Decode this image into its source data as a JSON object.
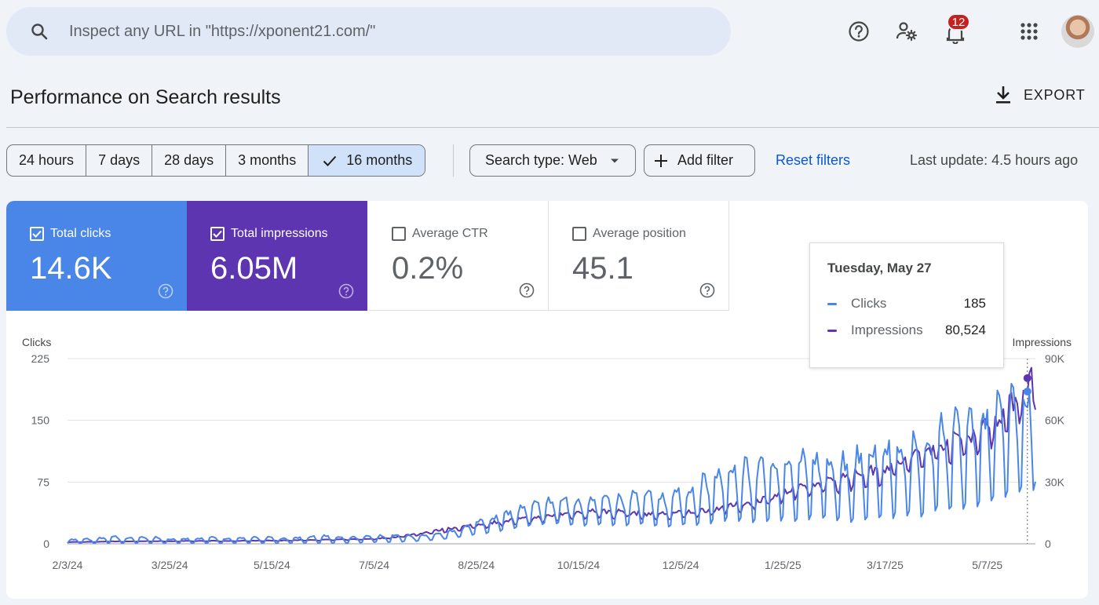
{
  "search": {
    "placeholder": "Inspect any URL in \"https://xponent21.com/\""
  },
  "topbar": {
    "icons": [
      "help-icon",
      "manage-users-icon",
      "notifications-icon",
      "apps-grid-icon"
    ],
    "notification_count": "12"
  },
  "header": {
    "title": "Performance on Search results",
    "export_label": "EXPORT"
  },
  "filters": {
    "ranges": [
      "24 hours",
      "7 days",
      "28 days",
      "3 months",
      "16 months"
    ],
    "active_range": "16 months",
    "search_type": "Search type: Web",
    "add_filter": "Add filter",
    "reset": "Reset filters",
    "last_update": "Last update: 4.5 hours ago"
  },
  "metrics": {
    "clicks": {
      "label": "Total clicks",
      "value": "14.6K",
      "checked": true,
      "color": "#4a86e8"
    },
    "impressions": {
      "label": "Total impressions",
      "value": "6.05M",
      "checked": true,
      "color": "#5e35b1"
    },
    "ctr": {
      "label": "Average CTR",
      "value": "0.2%",
      "checked": false
    },
    "position": {
      "label": "Average position",
      "value": "45.1",
      "checked": false
    }
  },
  "tooltip": {
    "date": "Tuesday, May 27",
    "rows": [
      {
        "name": "Clicks",
        "value": "185",
        "color": "#4a86e8"
      },
      {
        "name": "Impressions",
        "value": "80,524",
        "color": "#5e35b1"
      }
    ]
  },
  "chart_data": {
    "type": "line",
    "ylabel_left": "Clicks",
    "ylabel_right": "Impressions",
    "left_ticks": [
      "225",
      "150",
      "75",
      "0"
    ],
    "right_ticks": [
      "90K",
      "60K",
      "30K",
      "0"
    ],
    "ylim_left": [
      0,
      225
    ],
    "ylim_right": [
      0,
      90000
    ],
    "x_ticks": [
      "2/3/24",
      "3/25/24",
      "5/15/24",
      "7/5/24",
      "8/25/24",
      "10/15/24",
      "12/5/24",
      "1/25/25",
      "3/17/25",
      "5/7/25"
    ],
    "x_start": "2024-02-03",
    "x_end": "2025-05-31",
    "grid": true,
    "series": [
      {
        "name": "Clicks",
        "color": "#4a86e8",
        "axis": "left",
        "weekly_peak": [
          5,
          6,
          6,
          10,
          7,
          8,
          8,
          6,
          7,
          7,
          8,
          6,
          7,
          8,
          8,
          7,
          8,
          9,
          10,
          8,
          8,
          9,
          10,
          11,
          10,
          10,
          12,
          16,
          22,
          30,
          34,
          40,
          45,
          50,
          54,
          56,
          52,
          60,
          58,
          56,
          64,
          62,
          60,
          68,
          72,
          82,
          92,
          100,
          96,
          104,
          110,
          100,
          114,
          106,
          108,
          102,
          118,
          126,
          122,
          120,
          128,
          142,
          150,
          155,
          160,
          165,
          180,
          185,
          178
        ],
        "weekly_low": [
          0,
          0,
          0,
          0,
          0,
          0,
          0,
          0,
          0,
          0,
          0,
          0,
          0,
          0,
          0,
          0,
          0,
          0,
          0,
          0,
          0,
          1,
          1,
          1,
          2,
          3,
          4,
          6,
          8,
          10,
          12,
          15,
          18,
          20,
          22,
          20,
          18,
          20,
          18,
          17,
          20,
          18,
          16,
          18,
          16,
          18,
          20,
          20,
          18,
          18,
          20,
          18,
          20,
          22,
          20,
          18,
          20,
          20,
          22,
          24,
          24,
          28,
          30,
          30,
          35,
          40,
          45,
          50,
          55
        ]
      },
      {
        "name": "Impressions",
        "color": "#5e35b1",
        "axis": "right",
        "weekly": [
          800,
          900,
          900,
          1200,
          1100,
          1200,
          1300,
          1200,
          1300,
          1300,
          1400,
          1300,
          1400,
          1500,
          1500,
          1600,
          1700,
          1800,
          1900,
          2000,
          2100,
          2300,
          2600,
          3200,
          4200,
          5200,
          6300,
          7400,
          8200,
          9000,
          10200,
          11000,
          11600,
          12200,
          13000,
          14200,
          14800,
          15500,
          15000,
          15200,
          14400,
          14000,
          14200,
          14500,
          15200,
          16000,
          17200,
          18200,
          19500,
          21500,
          23500,
          25000,
          27000,
          28500,
          30500,
          32000,
          33500,
          35000,
          37000,
          40000,
          43000,
          46000,
          48500,
          50000,
          53000,
          58000,
          63000,
          72000,
          80524
        ]
      }
    ],
    "highlight": {
      "date": "2025-05-27",
      "clicks": 185,
      "impressions": 80524
    }
  }
}
